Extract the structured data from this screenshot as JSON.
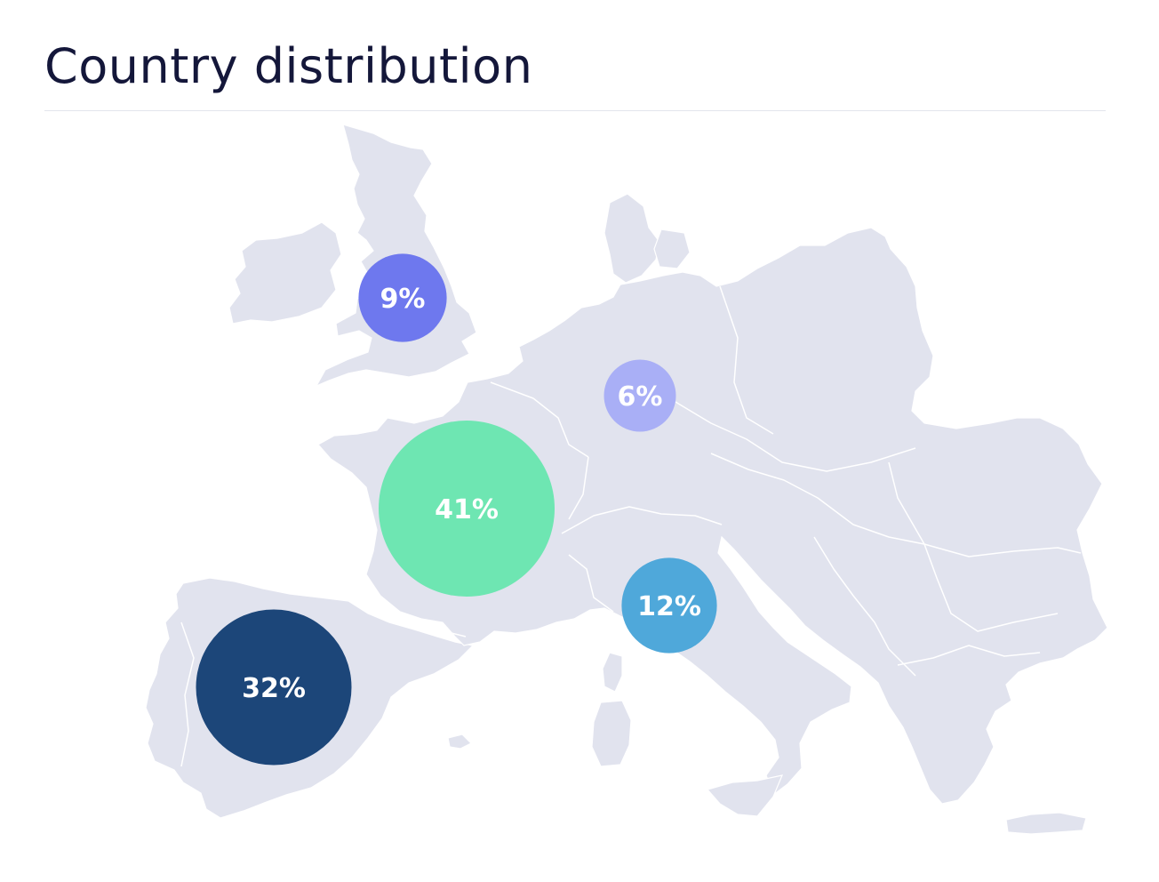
{
  "header": {
    "title": "Country distribution"
  },
  "colors": {
    "title": "#14173a",
    "land": "#e1e3ee",
    "border": "#ffffff"
  },
  "bubbles": [
    {
      "country": "United Kingdom",
      "value": 9,
      "label": "9%",
      "color": "#6e78ee"
    },
    {
      "country": "Germany",
      "value": 6,
      "label": "6%",
      "color": "#a9aff6"
    },
    {
      "country": "France",
      "value": 41,
      "label": "41%",
      "color": "#6ee6b2"
    },
    {
      "country": "Italy",
      "value": 12,
      "label": "12%",
      "color": "#4fa8da"
    },
    {
      "country": "Spain",
      "value": 32,
      "label": "32%",
      "color": "#1c4679"
    }
  ]
}
